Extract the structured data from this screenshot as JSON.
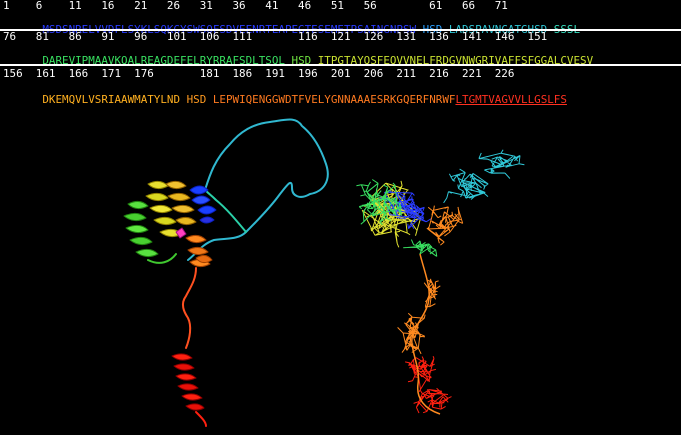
{
  "blocks": [
    {
      "numbers": "1    6    11   16   21   26   31   36   41   46   51   56        61   66   71",
      "segments": [
        {
          "text": "MSDSNRELVVDFLSYKLSQKGYSWSQFSDVEENRTEAPEGTESEMETPSAINGNPSW",
          "color": "#2a3cff"
        },
        {
          "text": " HSD ",
          "color": "#2aa0ff"
        },
        {
          "text": "LADSPAVNGATGHSD",
          "color": "#30c8d8"
        },
        {
          "text": " SSSL",
          "color": "#38e0c0"
        }
      ]
    },
    {
      "numbers": "76   81   86   91   96   101  106  111       116  121  126  131  136  141  146  151",
      "segments": [
        {
          "text": "DAREVIPMAAVKQALREAGDEFELRYRRAFSDLTSQL",
          "color": "#38e060"
        },
        {
          "text": " HSD ",
          "color": "#6ee040"
        },
        {
          "text": "ITPGTAYQSFEQVVNELFRDGVNWGRIVAFFSFGGALCVESV",
          "color": "#c8e030"
        }
      ]
    },
    {
      "numbers": "156  161  166  171  176       181  186  191  196  201  206  211  216  221  226",
      "segments": [
        {
          "text": "DKEMQVLVSRIAAWMATYLND",
          "color": "#ffb020"
        },
        {
          "text": " HSD ",
          "color": "#ff9a20"
        },
        {
          "text": "LEPWIQENGGWDTFVELYGNNAAAESRKGQERFNRWF",
          "color": "#ff7a20"
        },
        {
          "text": "LTGMTVAGVVLLGSLFS",
          "color": "#ff3020"
        }
      ]
    }
  ],
  "palette": {
    "blue": "#2a3cff",
    "cyan": "#30c8d8",
    "green": "#38e060",
    "yellow": "#e0e030",
    "orange": "#ff8a20",
    "red": "#ff2010"
  }
}
